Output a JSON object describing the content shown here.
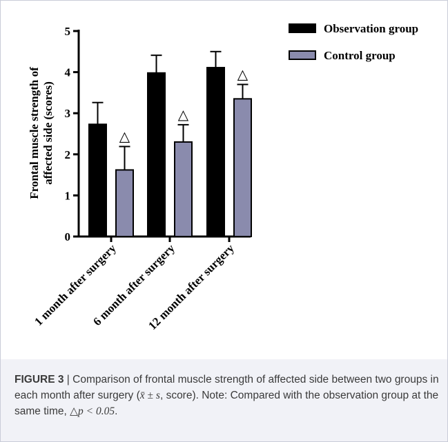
{
  "chart_data": {
    "type": "bar",
    "categories": [
      "1 month after surgery",
      "6 month after surgery",
      "12 month after surgery"
    ],
    "series": [
      {
        "name": "Observation group",
        "values": [
          2.73,
          3.98,
          4.11
        ],
        "errors": [
          0.53,
          0.43,
          0.39
        ],
        "color": "#000000"
      },
      {
        "name": "Control group",
        "values": [
          1.62,
          2.3,
          3.35
        ],
        "errors": [
          0.57,
          0.42,
          0.35
        ],
        "color": "#8a8bad"
      }
    ],
    "significance_marker": "△",
    "significant_series": "Control group",
    "ylabel_line1": "Frontal muscle strength of",
    "ylabel_line2": "affected side (scores)",
    "ylim": [
      0,
      5
    ],
    "yticks": [
      "0",
      "1",
      "2",
      "3",
      "4",
      "5"
    ],
    "legend_position": "top-right"
  },
  "caption": {
    "label": "FIGURE 3",
    "separator": " | ",
    "text_a": "Comparison of frontal muscle strength of affected side between two groups in each month after surgery (",
    "math": "x̄ ± s",
    "text_b": ", score). Note: Compared with the observation group at the same time, ",
    "sig": "△p < 0.05",
    "text_c": "."
  }
}
